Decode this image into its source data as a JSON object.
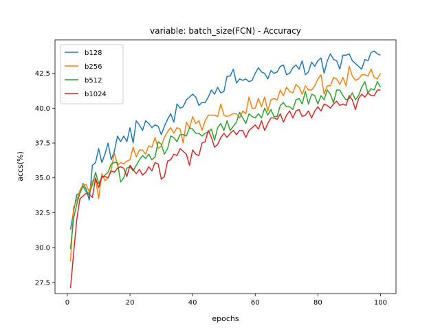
{
  "chart_data": {
    "type": "line",
    "title": "variable: batch_size(FCN) - Accuracy",
    "xlabel": "epochs",
    "ylabel": "accs(%)",
    "xlim": [
      -3.95,
      104.95
    ],
    "ylim": [
      26.7,
      44.9
    ],
    "xticks": [
      0,
      20,
      40,
      60,
      80,
      100
    ],
    "yticks": [
      27.5,
      30.0,
      32.5,
      35.0,
      37.5,
      40.0,
      42.5
    ],
    "ytick_labels": [
      "27.5",
      "30.0",
      "32.5",
      "35.0",
      "37.5",
      "40.0",
      "42.5"
    ],
    "grid": false,
    "legend_position": "top-left",
    "x": [
      1,
      2,
      3,
      4,
      5,
      6,
      7,
      8,
      9,
      10,
      11,
      12,
      13,
      14,
      15,
      16,
      17,
      18,
      19,
      20,
      21,
      22,
      23,
      24,
      25,
      26,
      27,
      28,
      29,
      30,
      31,
      32,
      33,
      34,
      35,
      36,
      37,
      38,
      39,
      40,
      41,
      42,
      43,
      44,
      45,
      46,
      47,
      48,
      49,
      50,
      51,
      52,
      53,
      54,
      55,
      56,
      57,
      58,
      59,
      60,
      61,
      62,
      63,
      64,
      65,
      66,
      67,
      68,
      69,
      70,
      71,
      72,
      73,
      74,
      75,
      76,
      77,
      78,
      79,
      80,
      81,
      82,
      83,
      84,
      85,
      86,
      87,
      88,
      89,
      90,
      91,
      92,
      93,
      94,
      95,
      96,
      97,
      98,
      99,
      100
    ],
    "series": [
      {
        "name": "b128",
        "color": "#1f77b4",
        "values": [
          31.3,
          32.6,
          33.8,
          33.9,
          34.6,
          34.2,
          33.4,
          35.9,
          36.1,
          37.1,
          36.1,
          36.7,
          37.5,
          36.3,
          36.9,
          38.0,
          37.6,
          38.0,
          37.6,
          38.6,
          37.5,
          39.1,
          38.8,
          38.4,
          39.1,
          38.9,
          38.6,
          38.8,
          38.7,
          38.1,
          38.7,
          39.2,
          39.6,
          39.0,
          40.3,
          40.0,
          40.1,
          40.6,
          40.8,
          41.0,
          40.8,
          40.2,
          40.4,
          40.4,
          40.8,
          41.3,
          41.0,
          41.5,
          41.1,
          41.2,
          42.3,
          42.3,
          42.8,
          41.8,
          42.1,
          42.0,
          42.1,
          41.9,
          42.0,
          42.5,
          42.9,
          42.6,
          42.5,
          42.1,
          42.7,
          42.5,
          42.6,
          43.0,
          43.1,
          42.4,
          42.5,
          42.9,
          43.1,
          42.8,
          43.4,
          42.4,
          42.6,
          43.3,
          43.0,
          43.4,
          43.6,
          42.5,
          43.4,
          43.9,
          43.5,
          43.4,
          42.8,
          43.8,
          43.8,
          43.9,
          43.4,
          43.2,
          43.0,
          42.8,
          43.5,
          43.4,
          44.0,
          44.1,
          43.9,
          43.8
        ]
      },
      {
        "name": "b256",
        "color": "#ff7f0e",
        "values": [
          29.0,
          32.9,
          33.4,
          34.1,
          34.5,
          34.5,
          34.0,
          34.8,
          34.9,
          33.5,
          35.3,
          34.8,
          35.0,
          35.6,
          36.8,
          35.9,
          36.1,
          36.0,
          36.2,
          36.3,
          37.2,
          36.5,
          37.0,
          37.0,
          36.7,
          37.3,
          37.2,
          37.9,
          37.1,
          37.3,
          37.9,
          38.3,
          38.6,
          38.2,
          38.6,
          38.5,
          37.5,
          39.0,
          38.6,
          39.4,
          38.9,
          39.1,
          38.4,
          39.1,
          39.5,
          39.5,
          39.5,
          39.4,
          40.3,
          39.5,
          39.4,
          39.5,
          39.6,
          39.6,
          39.3,
          39.8,
          39.6,
          40.8,
          40.0,
          40.0,
          40.7,
          40.1,
          40.8,
          39.8,
          40.6,
          40.7,
          40.6,
          41.3,
          40.9,
          41.5,
          41.2,
          41.1,
          41.7,
          41.5,
          41.0,
          41.6,
          41.3,
          41.3,
          41.6,
          42.1,
          42.4,
          41.0,
          41.6,
          41.6,
          42.2,
          42.1,
          41.7,
          42.2,
          41.6,
          43.0,
          42.3,
          42.0,
          42.1,
          42.4,
          42.4,
          42.3,
          42.8,
          42.2,
          42.1,
          42.5
        ]
      },
      {
        "name": "b512",
        "color": "#2ca02c",
        "values": [
          29.9,
          32.1,
          33.1,
          33.9,
          34.4,
          34.0,
          33.9,
          34.5,
          35.4,
          34.6,
          35.0,
          35.2,
          35.4,
          36.0,
          36.1,
          36.1,
          34.7,
          35.0,
          35.7,
          35.8,
          35.5,
          35.9,
          36.3,
          36.6,
          36.4,
          36.7,
          36.3,
          36.5,
          37.6,
          37.4,
          36.7,
          37.1,
          38.0,
          37.9,
          37.6,
          38.1,
          38.1,
          38.0,
          38.6,
          38.5,
          38.2,
          38.2,
          38.0,
          38.2,
          38.3,
          38.5,
          37.7,
          38.6,
          38.9,
          38.4,
          39.1,
          38.4,
          38.7,
          39.0,
          39.7,
          39.3,
          38.9,
          39.6,
          39.4,
          39.3,
          39.6,
          39.3,
          40.0,
          39.5,
          39.9,
          39.4,
          39.4,
          40.2,
          40.4,
          40.1,
          40.1,
          39.9,
          40.6,
          40.7,
          40.3,
          41.2,
          40.3,
          41.0,
          40.9,
          40.3,
          40.9,
          40.6,
          41.3,
          41.0,
          40.4,
          41.3,
          41.3,
          40.9,
          40.6,
          40.7,
          41.1,
          40.6,
          40.9,
          41.5,
          41.9,
          41.1,
          41.4,
          41.3,
          41.9,
          41.5
        ]
      },
      {
        "name": "b1024",
        "color": "#d62728",
        "values": [
          27.1,
          29.6,
          32.0,
          33.5,
          33.7,
          33.9,
          33.8,
          33.6,
          35.0,
          34.3,
          35.1,
          35.1,
          35.0,
          35.5,
          35.4,
          35.7,
          35.8,
          35.7,
          35.1,
          35.9,
          35.6,
          35.3,
          35.6,
          35.2,
          35.4,
          35.8,
          35.5,
          36.1,
          36.0,
          34.9,
          35.1,
          36.2,
          36.3,
          36.7,
          36.6,
          37.1,
          36.9,
          36.7,
          35.9,
          37.0,
          36.7,
          36.6,
          37.5,
          37.6,
          38.4,
          37.9,
          37.2,
          37.4,
          37.9,
          38.2,
          37.9,
          38.2,
          38.4,
          38.1,
          38.4,
          38.4,
          37.9,
          38.4,
          38.6,
          38.8,
          38.5,
          39.1,
          38.4,
          38.9,
          39.3,
          39.3,
          39.2,
          39.6,
          39.0,
          39.5,
          39.8,
          39.3,
          39.8,
          39.9,
          39.4,
          39.5,
          39.8,
          39.3,
          39.8,
          40.1,
          39.8,
          40.3,
          40.2,
          40.0,
          40.3,
          40.5,
          40.2,
          40.3,
          40.2,
          40.9,
          40.6,
          39.9,
          40.7,
          41.0,
          40.8,
          41.1,
          40.9,
          40.9,
          41.3,
          41.3
        ]
      }
    ]
  }
}
